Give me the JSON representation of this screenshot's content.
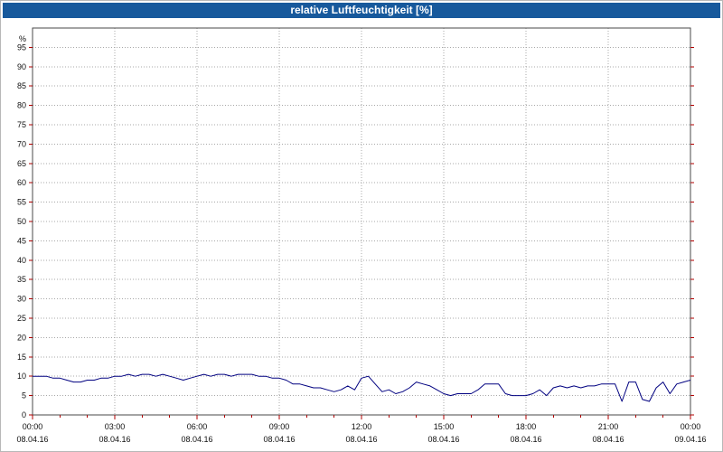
{
  "title": "relative Luftfeuchtigkeit [%]",
  "chart_data": {
    "type": "line",
    "title": "relative Luftfeuchtigkeit [%]",
    "ylabel": "%",
    "xlabel": "",
    "ylim": [
      0,
      100
    ],
    "xlim_hours": [
      0,
      24
    ],
    "grid": "dotted",
    "legend": "none",
    "yticks": [
      0,
      5,
      10,
      15,
      20,
      25,
      30,
      35,
      40,
      45,
      50,
      55,
      60,
      65,
      70,
      75,
      80,
      85,
      90,
      95
    ],
    "xticks": [
      {
        "hour": 0,
        "time": "00:00",
        "date": "08.04.16"
      },
      {
        "hour": 3,
        "time": "03:00",
        "date": "08.04.16"
      },
      {
        "hour": 6,
        "time": "06:00",
        "date": "08.04.16"
      },
      {
        "hour": 9,
        "time": "09:00",
        "date": "08.04.16"
      },
      {
        "hour": 12,
        "time": "12:00",
        "date": "08.04.16"
      },
      {
        "hour": 15,
        "time": "15:00",
        "date": "08.04.16"
      },
      {
        "hour": 18,
        "time": "18:00",
        "date": "08.04.16"
      },
      {
        "hour": 21,
        "time": "21:00",
        "date": "08.04.16"
      },
      {
        "hour": 24,
        "time": "00:00",
        "date": "09.04.16"
      }
    ],
    "series": [
      {
        "name": "relative Luftfeuchtigkeit",
        "color": "#000080",
        "points": [
          [
            0.0,
            10.0
          ],
          [
            0.25,
            10.0
          ],
          [
            0.5,
            10.0
          ],
          [
            0.75,
            9.5
          ],
          [
            1.0,
            9.5
          ],
          [
            1.25,
            9.0
          ],
          [
            1.5,
            8.5
          ],
          [
            1.75,
            8.5
          ],
          [
            2.0,
            9.0
          ],
          [
            2.25,
            9.0
          ],
          [
            2.5,
            9.5
          ],
          [
            2.75,
            9.5
          ],
          [
            3.0,
            10.0
          ],
          [
            3.25,
            10.0
          ],
          [
            3.5,
            10.5
          ],
          [
            3.75,
            10.0
          ],
          [
            4.0,
            10.5
          ],
          [
            4.25,
            10.5
          ],
          [
            4.5,
            10.0
          ],
          [
            4.75,
            10.5
          ],
          [
            5.0,
            10.0
          ],
          [
            5.25,
            9.5
          ],
          [
            5.5,
            9.0
          ],
          [
            5.75,
            9.5
          ],
          [
            6.0,
            10.0
          ],
          [
            6.25,
            10.5
          ],
          [
            6.5,
            10.0
          ],
          [
            6.75,
            10.5
          ],
          [
            7.0,
            10.5
          ],
          [
            7.25,
            10.0
          ],
          [
            7.5,
            10.5
          ],
          [
            7.75,
            10.5
          ],
          [
            8.0,
            10.5
          ],
          [
            8.25,
            10.0
          ],
          [
            8.5,
            10.0
          ],
          [
            8.75,
            9.5
          ],
          [
            9.0,
            9.5
          ],
          [
            9.25,
            9.0
          ],
          [
            9.5,
            8.0
          ],
          [
            9.75,
            8.0
          ],
          [
            10.0,
            7.5
          ],
          [
            10.25,
            7.0
          ],
          [
            10.5,
            7.0
          ],
          [
            10.75,
            6.5
          ],
          [
            11.0,
            6.0
          ],
          [
            11.25,
            6.5
          ],
          [
            11.5,
            7.5
          ],
          [
            11.75,
            6.5
          ],
          [
            12.0,
            9.5
          ],
          [
            12.25,
            10.0
          ],
          [
            12.5,
            8.0
          ],
          [
            12.75,
            6.0
          ],
          [
            13.0,
            6.5
          ],
          [
            13.25,
            5.5
          ],
          [
            13.5,
            6.0
          ],
          [
            13.75,
            7.0
          ],
          [
            14.0,
            8.5
          ],
          [
            14.25,
            8.0
          ],
          [
            14.5,
            7.5
          ],
          [
            14.75,
            6.5
          ],
          [
            15.0,
            5.5
          ],
          [
            15.25,
            5.0
          ],
          [
            15.5,
            5.5
          ],
          [
            15.75,
            5.5
          ],
          [
            16.0,
            5.5
          ],
          [
            16.25,
            6.5
          ],
          [
            16.5,
            8.0
          ],
          [
            16.75,
            8.0
          ],
          [
            17.0,
            8.0
          ],
          [
            17.25,
            5.5
          ],
          [
            17.5,
            5.0
          ],
          [
            17.75,
            5.0
          ],
          [
            18.0,
            5.0
          ],
          [
            18.25,
            5.5
          ],
          [
            18.5,
            6.5
          ],
          [
            18.75,
            5.0
          ],
          [
            19.0,
            7.0
          ],
          [
            19.25,
            7.5
          ],
          [
            19.5,
            7.0
          ],
          [
            19.75,
            7.5
          ],
          [
            20.0,
            7.0
          ],
          [
            20.25,
            7.5
          ],
          [
            20.5,
            7.5
          ],
          [
            20.75,
            8.0
          ],
          [
            21.0,
            8.0
          ],
          [
            21.25,
            8.0
          ],
          [
            21.5,
            3.5
          ],
          [
            21.75,
            8.5
          ],
          [
            22.0,
            8.5
          ],
          [
            22.25,
            4.0
          ],
          [
            22.5,
            3.5
          ],
          [
            22.75,
            7.0
          ],
          [
            23.0,
            8.5
          ],
          [
            23.25,
            5.5
          ],
          [
            23.5,
            8.0
          ],
          [
            23.75,
            8.5
          ],
          [
            24.0,
            9.0
          ]
        ]
      }
    ],
    "colors": {
      "titlebar": "#17599c",
      "title_text": "#ffffff",
      "line": "#000080",
      "grid": "#a8a8a8",
      "ticks": "#b00000",
      "frame": "#4a4a4a",
      "background": "#ffffff"
    }
  }
}
